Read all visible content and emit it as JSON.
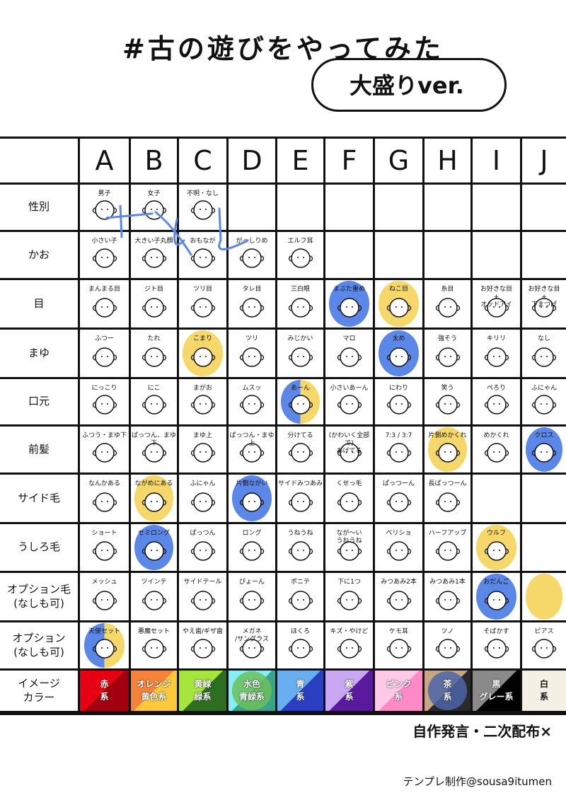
{
  "header": {
    "title": "#古の遊びをやってみた",
    "subtitle": "大盛りver."
  },
  "columns": [
    "A",
    "B",
    "C",
    "D",
    "E",
    "F",
    "G",
    "H",
    "I",
    "J"
  ],
  "rows": [
    {
      "label": "性別",
      "items": [
        {
          "label": "男子"
        },
        {
          "label": "女子"
        },
        {
          "label": "不明・なし"
        },
        {
          "label": ""
        },
        {
          "label": ""
        },
        {
          "label": ""
        },
        {
          "label": ""
        },
        {
          "label": ""
        },
        {
          "label": ""
        },
        {
          "label": ""
        }
      ]
    },
    {
      "label": "かお",
      "items": [
        {
          "label": "小さい子"
        },
        {
          "label": "大きい子丸顔"
        },
        {
          "label": "おもなが"
        },
        {
          "label": "がっしりめ"
        },
        {
          "label": "エルフ耳"
        },
        {
          "label": ""
        },
        {
          "label": ""
        },
        {
          "label": ""
        },
        {
          "label": ""
        },
        {
          "label": ""
        }
      ]
    },
    {
      "label": "目",
      "items": [
        {
          "label": "まんまる目"
        },
        {
          "label": "ジト目"
        },
        {
          "label": "ツリ目"
        },
        {
          "label": "タレ目"
        },
        {
          "label": "三白眼"
        },
        {
          "label": "まぶた重め",
          "mark": "blue"
        },
        {
          "label": "ねこ目",
          "mark": "yellow"
        },
        {
          "label": "糸目"
        },
        {
          "label": "お好きな目\n+\nオッドアイ"
        },
        {
          "label": "お好きな目\n+\n下まつげ"
        }
      ]
    },
    {
      "label": "まゆ",
      "items": [
        {
          "label": "ふつー"
        },
        {
          "label": "たれ"
        },
        {
          "label": "こまり",
          "mark": "yellow"
        },
        {
          "label": "ツリ"
        },
        {
          "label": "みじかい"
        },
        {
          "label": "マロ"
        },
        {
          "label": "太め",
          "mark": "blue"
        },
        {
          "label": "強そう"
        },
        {
          "label": "キリリ"
        },
        {
          "label": "なし"
        }
      ]
    },
    {
      "label": "口元",
      "items": [
        {
          "label": "にっこり"
        },
        {
          "label": "にこ"
        },
        {
          "label": "まがお"
        },
        {
          "label": "ムスッ"
        },
        {
          "label": "あーん",
          "mark": "blue-yellow"
        },
        {
          "label": "小さいあーん"
        },
        {
          "label": "にわり"
        },
        {
          "label": "笑う"
        },
        {
          "label": "ぺろり"
        },
        {
          "label": "ふにゃん"
        }
      ]
    },
    {
      "label": "前髪",
      "items": [
        {
          "label": "ふつう・まゆ下"
        },
        {
          "label": "ぱっつん、まゆ下"
        },
        {
          "label": "まゆ上"
        },
        {
          "label": "ぱっつん・まゆ上"
        },
        {
          "label": "分けてる"
        },
        {
          "label": "(かわいく全部で)\nあげてる"
        },
        {
          "label": "7:3 / 3:7"
        },
        {
          "label": "片側めかくれ",
          "mark": "yellow"
        },
        {
          "label": "めかくれ"
        },
        {
          "label": "クロス",
          "mark": "blue"
        }
      ]
    },
    {
      "label": "サイド毛",
      "items": [
        {
          "label": "なんかある"
        },
        {
          "label": "ながめにある",
          "mark": "yellow"
        },
        {
          "label": "ふにゃん"
        },
        {
          "label": "片側ながい",
          "mark": "blue"
        },
        {
          "label": "サイドみつあみ"
        },
        {
          "label": "くせっ毛"
        },
        {
          "label": "ぱっつーん"
        },
        {
          "label": "長ぱっつーん"
        },
        {
          "label": ""
        },
        {
          "label": ""
        }
      ]
    },
    {
      "label": "うしろ毛",
      "items": [
        {
          "label": "ショート"
        },
        {
          "label": "セミロング",
          "mark": "blue"
        },
        {
          "label": "ぱっつん"
        },
        {
          "label": "ロング"
        },
        {
          "label": "うねうね"
        },
        {
          "label": "なが〜い\nうねうね"
        },
        {
          "label": "ベリショ"
        },
        {
          "label": "ハーフアップ"
        },
        {
          "label": "ウルフ",
          "mark": "yellow"
        },
        {
          "label": ""
        }
      ]
    },
    {
      "label": "オプション毛\n(なしも可)",
      "items": [
        {
          "label": "メッシュ"
        },
        {
          "label": "ツインテ"
        },
        {
          "label": "サイドテール"
        },
        {
          "label": "ぴょーん"
        },
        {
          "label": "ポニテ"
        },
        {
          "label": "下に1つ"
        },
        {
          "label": "みつあみ2本"
        },
        {
          "label": "みつあみ1本"
        },
        {
          "label": "おだんご",
          "mark": "blue"
        },
        {
          "label": "",
          "mark": "yellow"
        }
      ]
    },
    {
      "label": "オプション\n(なしも可)",
      "items": [
        {
          "label": "天使セット",
          "mark": "blue-yellow"
        },
        {
          "label": "悪魔セット"
        },
        {
          "label": "やえ歯/ギザ歯"
        },
        {
          "label": "メガネ\n/サングラス"
        },
        {
          "label": "ほくろ"
        },
        {
          "label": "キズ・やけど"
        },
        {
          "label": "ケモ耳"
        },
        {
          "label": "ツノ"
        },
        {
          "label": "そばかす"
        },
        {
          "label": "ピアス"
        }
      ]
    }
  ],
  "colors_row": {
    "label": "イメージ\nカラー",
    "swatches": [
      {
        "label": "赤\n系",
        "c1": "#e60012",
        "c2": "#a3000f"
      },
      {
        "label": "オレンジ\n黄色系",
        "c1": "#f5843a",
        "c2": "#ffc93a"
      },
      {
        "label": "黄緑\n緑系",
        "c1": "#a6e63c",
        "c2": "#2e6e22"
      },
      {
        "label": "水色\n青緑系",
        "c1": "#86eef5",
        "c2": "#38a48c",
        "mark": "#6cc05a"
      },
      {
        "label": "青\n系",
        "c1": "#6aaef2",
        "c2": "#2a3fc0"
      },
      {
        "label": "紫\n系",
        "c1": "#c9a7f2",
        "c2": "#5a1a9e"
      },
      {
        "label": "ピンク\n系",
        "c1": "#ffc9e8",
        "c2": "#ff8ac8"
      },
      {
        "label": "茶\n系",
        "c1": "#c6a684",
        "c2": "#2a2a2a",
        "mark": "#4c64a8"
      },
      {
        "label": "黒\nグレー系",
        "c1": "#8a8a8a",
        "c2": "#000000"
      },
      {
        "label": "白\n系",
        "c1": "#f4f0e4",
        "c2": "#f4f0e4"
      }
    ]
  },
  "footer": {
    "notice": "自作発言・二次配布×",
    "credit": "テンプレ制作@sousa9itumen"
  }
}
